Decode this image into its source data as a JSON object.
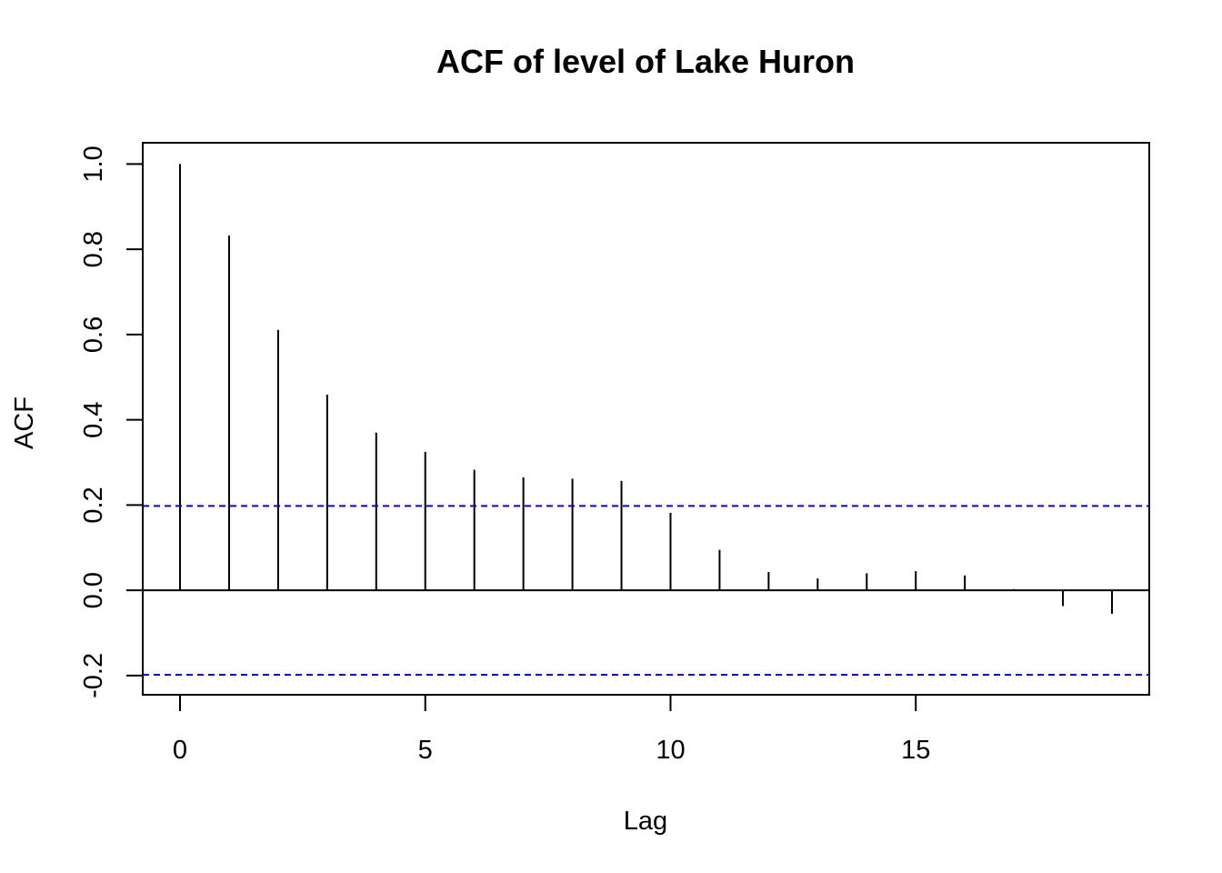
{
  "chart_data": {
    "type": "bar",
    "title": "ACF of level of Lake Huron",
    "xlabel": "Lag",
    "ylabel": "ACF",
    "x": [
      0,
      1,
      2,
      3,
      4,
      5,
      6,
      7,
      8,
      9,
      10,
      11,
      12,
      13,
      14,
      15,
      16,
      17,
      18,
      19
    ],
    "values": [
      1.0,
      0.832,
      0.611,
      0.459,
      0.37,
      0.325,
      0.283,
      0.265,
      0.262,
      0.257,
      0.182,
      0.095,
      0.043,
      0.028,
      0.04,
      0.045,
      0.035,
      0.003,
      -0.037,
      -0.055
    ],
    "confidence_bound": 0.198,
    "xlim": [
      -0.76,
      19.76
    ],
    "ylim": [
      -0.245,
      1.05
    ],
    "x_ticks": [
      0,
      5,
      10,
      15
    ],
    "x_tick_labels": [
      "0",
      "5",
      "10",
      "15"
    ],
    "y_ticks": [
      -0.2,
      0.0,
      0.2,
      0.4,
      0.6,
      0.8,
      1.0
    ],
    "y_tick_labels": [
      "-0.2",
      "0.0",
      "0.2",
      "0.4",
      "0.6",
      "0.8",
      "1.0"
    ],
    "grid": false,
    "bar_color": "#000000",
    "bound_color": "#0000FF"
  }
}
